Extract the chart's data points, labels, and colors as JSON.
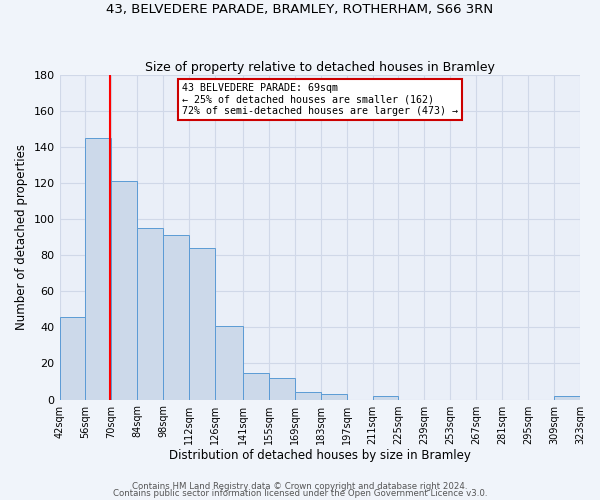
{
  "title": "43, BELVEDERE PARADE, BRAMLEY, ROTHERHAM, S66 3RN",
  "subtitle": "Size of property relative to detached houses in Bramley",
  "xlabel": "Distribution of detached houses by size in Bramley",
  "ylabel": "Number of detached properties",
  "bin_edges": [
    42,
    56,
    70,
    84,
    98,
    112,
    126,
    141,
    155,
    169,
    183,
    197,
    211,
    225,
    239,
    253,
    267,
    281,
    295,
    309,
    323
  ],
  "bin_heights": [
    46,
    145,
    121,
    95,
    91,
    84,
    41,
    15,
    12,
    4,
    3,
    0,
    2,
    0,
    0,
    0,
    0,
    0,
    0,
    2
  ],
  "bar_color": "#ccd9ea",
  "bar_edge_color": "#5b9bd5",
  "grid_color": "#d0d8e8",
  "bg_color": "#eaeff8",
  "fig_bg_color": "#f0f4fa",
  "red_line_x": 69,
  "annotation_line1": "43 BELVEDERE PARADE: 69sqm",
  "annotation_line2": "← 25% of detached houses are smaller (162)",
  "annotation_line3": "72% of semi-detached houses are larger (473) →",
  "annotation_box_color": "#ffffff",
  "annotation_box_edge": "#cc0000",
  "ylim": [
    0,
    180
  ],
  "yticks": [
    0,
    20,
    40,
    60,
    80,
    100,
    120,
    140,
    160,
    180
  ],
  "footer1": "Contains HM Land Registry data © Crown copyright and database right 2024.",
  "footer2": "Contains public sector information licensed under the Open Government Licence v3.0."
}
